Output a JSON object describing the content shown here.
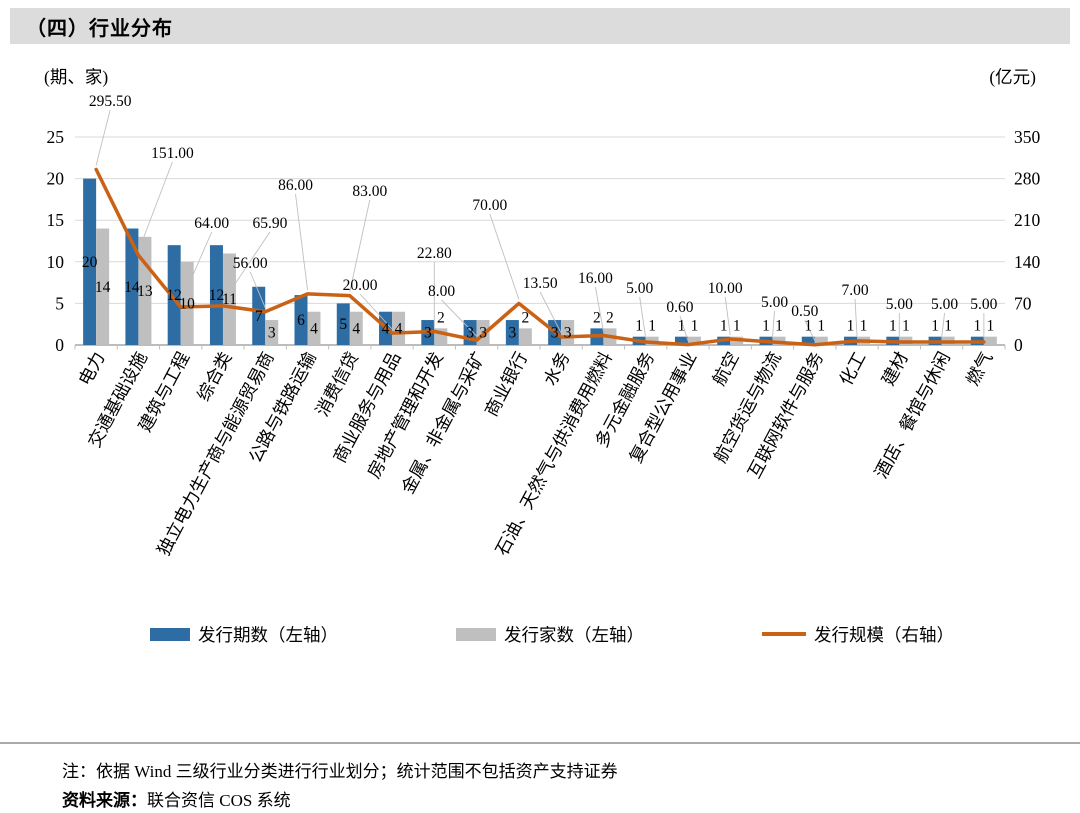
{
  "section": {
    "title": "（四）行业分布"
  },
  "chart_data": {
    "type": "bar",
    "combo": "bar+line dual axis",
    "title": "行业分布",
    "categories": [
      "电力",
      "交通基础设施",
      "建筑与工程",
      "综合类",
      "独立电力生产商与能源贸易商",
      "公路与铁路运输",
      "消费信贷",
      "商业服务与用品",
      "房地产管理和开发",
      "金属、非金属与采矿",
      "商业银行",
      "水务",
      "石油、天然气与供消费用燃料",
      "多元金融服务",
      "复合型公用事业",
      "航空",
      "航空货运与物流",
      "互联网软件与服务",
      "化工",
      "建材",
      "酒店、餐馆与休闲",
      "燃气"
    ],
    "series": [
      {
        "name": "发行期数（左轴）",
        "type": "bar",
        "axis": "left",
        "color": "#2E6DA3",
        "values": [
          20,
          14,
          12,
          12,
          7,
          6,
          5,
          4,
          3,
          3,
          3,
          3,
          2,
          1,
          1,
          1,
          1,
          1,
          1,
          1,
          1,
          1
        ]
      },
      {
        "name": "发行家数（左轴）",
        "type": "bar",
        "axis": "left",
        "color": "#BFBFBF",
        "values": [
          14,
          13,
          10,
          11,
          3,
          4,
          4,
          4,
          2,
          3,
          2,
          3,
          2,
          1,
          1,
          1,
          1,
          1,
          1,
          1,
          1,
          1
        ]
      },
      {
        "name": "发行规模（右轴）",
        "type": "line",
        "axis": "right",
        "color": "#C96214",
        "values": [
          295.5,
          151,
          64,
          65.9,
          56,
          86,
          83,
          20,
          22.8,
          8,
          70,
          13.5,
          16,
          5,
          0.6,
          10,
          5,
          0.5,
          7,
          5,
          5,
          5
        ],
        "labels": [
          "295.50",
          "151.00",
          "64.00",
          "65.90",
          "56.00",
          "86.00",
          "83.00",
          "20.00",
          "22.80",
          "8.00",
          "70.00",
          "13.50",
          "16.00",
          "5.00",
          "0.60",
          "10.00",
          "5.00",
          "0.50",
          "7.00",
          "5.00",
          "5.00",
          "5.00"
        ]
      }
    ],
    "left_axis": {
      "unit": "(期、家)",
      "min": 0,
      "max": 25,
      "ticks": [
        "0",
        "5",
        "10",
        "15",
        "20",
        "25"
      ]
    },
    "right_axis": {
      "unit": "(亿元)",
      "min": 0,
      "max": 350,
      "ticks": [
        "0",
        "70",
        "140",
        "210",
        "280",
        "350"
      ]
    },
    "grid": true,
    "legend_position": "bottom",
    "colors": {
      "grid": "#D9D9D9",
      "axis": "#A6A6A6",
      "leader": "#BFBFBF"
    }
  },
  "legend": {
    "items": [
      {
        "label": "发行期数（左轴）",
        "color": "#2E6DA3",
        "shape": "rect"
      },
      {
        "label": "发行家数（左轴）",
        "color": "#BFBFBF",
        "shape": "rect"
      },
      {
        "label": "发行规模（右轴）",
        "color": "#C96214",
        "shape": "line"
      }
    ]
  },
  "notes": {
    "note": "注：依据 Wind 三级行业分类进行行业划分；统计范围不包括资产支持证券",
    "source_label": "资料来源：",
    "source_text": "联合资信 COS 系统"
  }
}
